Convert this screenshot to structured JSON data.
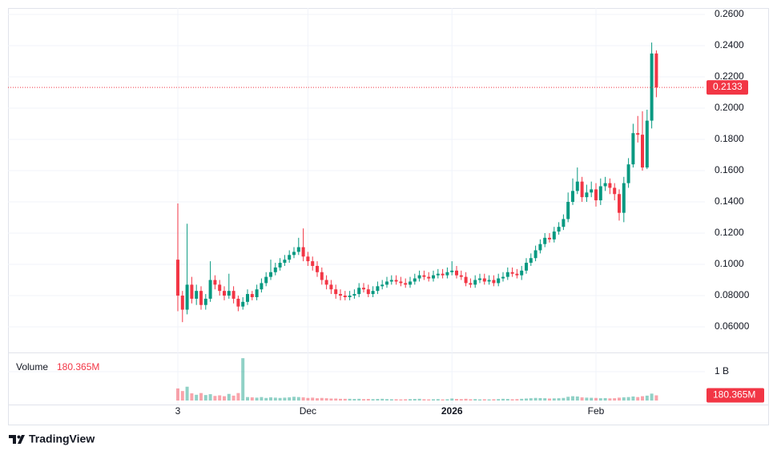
{
  "chart_data": {
    "type": "candlestick",
    "categories": [
      "3",
      null,
      null,
      null,
      null,
      null,
      null,
      null,
      null,
      null,
      null,
      null,
      null,
      null,
      null,
      null,
      null,
      null,
      null,
      null,
      null,
      null,
      null,
      null,
      null,
      null,
      null,
      null,
      "Dec",
      null,
      null,
      null,
      null,
      null,
      null,
      null,
      null,
      null,
      null,
      null,
      null,
      null,
      null,
      null,
      null,
      null,
      null,
      null,
      null,
      null,
      null,
      null,
      null,
      null,
      null,
      null,
      null,
      null,
      null,
      "2026",
      null,
      null,
      null,
      null,
      null,
      null,
      null,
      null,
      null,
      null,
      null,
      null,
      null,
      null,
      null,
      null,
      null,
      null,
      null,
      null,
      null,
      null,
      null,
      null,
      null,
      null,
      null,
      null,
      null,
      null,
      "Feb",
      null,
      null,
      null,
      null,
      null,
      null,
      null,
      null,
      null,
      null,
      null,
      null,
      null
    ],
    "open": [
      0.103,
      0.08,
      0.071,
      0.087,
      0.078,
      0.083,
      0.074,
      0.078,
      0.09,
      0.087,
      0.083,
      0.08,
      0.083,
      0.078,
      0.073,
      0.076,
      0.081,
      0.079,
      0.084,
      0.088,
      0.092,
      0.095,
      0.098,
      0.101,
      0.103,
      0.106,
      0.108,
      0.111,
      0.105,
      0.102,
      0.099,
      0.095,
      0.09,
      0.087,
      0.084,
      0.081,
      0.08,
      0.079,
      0.08,
      0.081,
      0.085,
      0.084,
      0.081,
      0.083,
      0.086,
      0.087,
      0.089,
      0.09,
      0.089,
      0.088,
      0.087,
      0.089,
      0.091,
      0.093,
      0.092,
      0.091,
      0.093,
      0.094,
      0.093,
      0.095,
      0.096,
      0.093,
      0.092,
      0.088,
      0.087,
      0.09,
      0.091,
      0.089,
      0.09,
      0.088,
      0.091,
      0.092,
      0.095,
      0.094,
      0.093,
      0.096,
      0.101,
      0.104,
      0.109,
      0.113,
      0.117,
      0.116,
      0.121,
      0.124,
      0.129,
      0.14,
      0.147,
      0.153,
      0.143,
      0.146,
      0.148,
      0.141,
      0.15,
      0.152,
      0.149,
      0.145,
      0.133,
      0.152,
      0.164,
      0.184,
      0.183,
      0.162,
      0.192,
      0.235
    ],
    "high": [
      0.139,
      0.083,
      0.126,
      0.092,
      0.087,
      0.086,
      0.081,
      0.102,
      0.093,
      0.09,
      0.086,
      0.094,
      0.086,
      0.08,
      0.079,
      0.084,
      0.083,
      0.087,
      0.091,
      0.095,
      0.103,
      0.101,
      0.104,
      0.106,
      0.109,
      0.111,
      0.117,
      0.123,
      0.108,
      0.105,
      0.102,
      0.098,
      0.093,
      0.09,
      0.087,
      0.084,
      0.083,
      0.083,
      0.084,
      0.088,
      0.088,
      0.087,
      0.086,
      0.089,
      0.09,
      0.092,
      0.093,
      0.093,
      0.092,
      0.091,
      0.092,
      0.094,
      0.096,
      0.096,
      0.095,
      0.096,
      0.097,
      0.097,
      0.098,
      0.102,
      0.099,
      0.096,
      0.095,
      0.091,
      0.093,
      0.094,
      0.094,
      0.093,
      0.093,
      0.094,
      0.095,
      0.098,
      0.098,
      0.097,
      0.099,
      0.104,
      0.107,
      0.112,
      0.116,
      0.12,
      0.12,
      0.124,
      0.127,
      0.132,
      0.146,
      0.155,
      0.162,
      0.156,
      0.151,
      0.153,
      0.152,
      0.155,
      0.156,
      0.155,
      0.152,
      0.148,
      0.156,
      0.168,
      0.19,
      0.195,
      0.198,
      0.199,
      0.242,
      0.237
    ],
    "low": [
      0.07,
      0.063,
      0.068,
      0.075,
      0.074,
      0.071,
      0.071,
      0.076,
      0.084,
      0.08,
      0.077,
      0.078,
      0.075,
      0.07,
      0.071,
      0.074,
      0.077,
      0.077,
      0.082,
      0.086,
      0.09,
      0.093,
      0.096,
      0.099,
      0.101,
      0.104,
      0.106,
      0.102,
      0.099,
      0.096,
      0.092,
      0.087,
      0.084,
      0.081,
      0.078,
      0.077,
      0.077,
      0.077,
      0.078,
      0.079,
      0.082,
      0.079,
      0.079,
      0.081,
      0.084,
      0.085,
      0.087,
      0.087,
      0.086,
      0.085,
      0.085,
      0.087,
      0.089,
      0.09,
      0.089,
      0.089,
      0.091,
      0.091,
      0.091,
      0.093,
      0.091,
      0.09,
      0.086,
      0.085,
      0.085,
      0.088,
      0.087,
      0.087,
      0.086,
      0.086,
      0.089,
      0.09,
      0.092,
      0.091,
      0.09,
      0.094,
      0.099,
      0.102,
      0.107,
      0.111,
      0.114,
      0.114,
      0.119,
      0.122,
      0.127,
      0.138,
      0.145,
      0.14,
      0.14,
      0.143,
      0.137,
      0.138,
      0.147,
      0.145,
      0.141,
      0.128,
      0.127,
      0.149,
      0.162,
      0.178,
      0.16,
      0.161,
      0.187,
      0.207
    ],
    "close": [
      0.08,
      0.071,
      0.087,
      0.078,
      0.083,
      0.074,
      0.078,
      0.09,
      0.087,
      0.083,
      0.08,
      0.083,
      0.078,
      0.073,
      0.076,
      0.081,
      0.079,
      0.084,
      0.088,
      0.092,
      0.095,
      0.098,
      0.101,
      0.103,
      0.106,
      0.108,
      0.111,
      0.105,
      0.102,
      0.099,
      0.095,
      0.09,
      0.087,
      0.084,
      0.081,
      0.08,
      0.079,
      0.08,
      0.081,
      0.085,
      0.084,
      0.081,
      0.083,
      0.086,
      0.087,
      0.089,
      0.09,
      0.089,
      0.088,
      0.087,
      0.089,
      0.091,
      0.093,
      0.092,
      0.091,
      0.093,
      0.094,
      0.093,
      0.095,
      0.096,
      0.093,
      0.092,
      0.088,
      0.087,
      0.09,
      0.091,
      0.089,
      0.09,
      0.088,
      0.091,
      0.092,
      0.095,
      0.094,
      0.093,
      0.096,
      0.101,
      0.104,
      0.109,
      0.113,
      0.117,
      0.116,
      0.121,
      0.124,
      0.129,
      0.14,
      0.147,
      0.153,
      0.143,
      0.146,
      0.148,
      0.141,
      0.15,
      0.152,
      0.149,
      0.145,
      0.133,
      0.152,
      0.164,
      0.184,
      0.183,
      0.162,
      0.192,
      0.235,
      0.2133
    ],
    "volume": [
      420000000,
      330000000,
      480000000,
      250000000,
      200000000,
      260000000,
      190000000,
      220000000,
      160000000,
      180000000,
      150000000,
      230000000,
      170000000,
      260000000,
      1470000000,
      120000000,
      110000000,
      100000000,
      120000000,
      90000000,
      110000000,
      100000000,
      90000000,
      100000000,
      110000000,
      130000000,
      120000000,
      110000000,
      90000000,
      100000000,
      80000000,
      90000000,
      80000000,
      70000000,
      70000000,
      60000000,
      60000000,
      60000000,
      55000000,
      60000000,
      50000000,
      55000000,
      50000000,
      55000000,
      60000000,
      50000000,
      45000000,
      45000000,
      40000000,
      45000000,
      50000000,
      55000000,
      60000000,
      45000000,
      40000000,
      45000000,
      50000000,
      40000000,
      45000000,
      70000000,
      55000000,
      50000000,
      60000000,
      45000000,
      50000000,
      40000000,
      45000000,
      40000000,
      45000000,
      50000000,
      60000000,
      55000000,
      45000000,
      50000000,
      60000000,
      70000000,
      80000000,
      90000000,
      85000000,
      80000000,
      70000000,
      75000000,
      80000000,
      90000000,
      130000000,
      150000000,
      140000000,
      110000000,
      100000000,
      95000000,
      90000000,
      80000000,
      85000000,
      75000000,
      80000000,
      100000000,
      110000000,
      120000000,
      140000000,
      120000000,
      150000000,
      170000000,
      240000000,
      180365000
    ],
    "volume_title": "Volume",
    "volume_last_label": "180.365M",
    "up_color": "#089981",
    "down_color": "#f23645",
    "ylim": [
      0.0436,
      0.2641
    ],
    "yticks": [
      {
        "value": 0.06,
        "label": "0.06000"
      },
      {
        "value": 0.08,
        "label": "0.08000"
      },
      {
        "value": 0.1,
        "label": "0.1000"
      },
      {
        "value": 0.12,
        "label": "0.1200"
      },
      {
        "value": 0.14,
        "label": "0.1400"
      },
      {
        "value": 0.16,
        "label": "0.1600"
      },
      {
        "value": 0.18,
        "label": "0.1800"
      },
      {
        "value": 0.2,
        "label": "0.2000"
      },
      {
        "value": 0.22,
        "label": "0.2200"
      },
      {
        "value": 0.24,
        "label": "0.2400"
      },
      {
        "value": 0.26,
        "label": "0.2600"
      }
    ],
    "volume_ylim": [
      0,
      1530000000
    ],
    "volume_yticks": [
      {
        "value": 1000000000,
        "label": "1 B"
      }
    ],
    "grid": true,
    "branding": "TradingView"
  }
}
